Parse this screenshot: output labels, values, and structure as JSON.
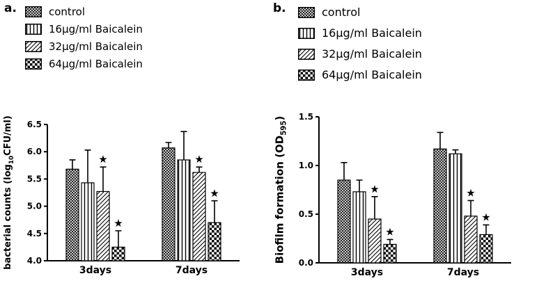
{
  "chart_data": [
    {
      "type": "bar",
      "panel_label": "a.",
      "ylabel": {
        "pre": "bacterial counts (log",
        "sub": "10",
        "post": "CFU/ml)"
      },
      "ylim": [
        4.0,
        6.5
      ],
      "yticks": [
        "4.0",
        "4.5",
        "5.0",
        "5.5",
        "6.0",
        "6.5"
      ],
      "categories": [
        "3days",
        "7days"
      ],
      "series": [
        {
          "name": "control",
          "pattern": "crosshatch-fine",
          "values": [
            5.68,
            6.07
          ],
          "errors": [
            0.17,
            0.1
          ],
          "significant": [
            false,
            false
          ]
        },
        {
          "name": "16μg/ml Baicalein",
          "pattern": "vertical-lines",
          "values": [
            5.43,
            5.85
          ],
          "errors": [
            0.6,
            0.52
          ],
          "significant": [
            false,
            false
          ]
        },
        {
          "name": "32μg/ml Baicalein",
          "pattern": "diagonal-lines",
          "values": [
            5.27,
            5.62
          ],
          "errors": [
            0.45,
            0.1
          ],
          "significant": [
            true,
            true
          ]
        },
        {
          "name": "64μg/ml Baicalein",
          "pattern": "checkerboard",
          "values": [
            4.25,
            4.7
          ],
          "errors": [
            0.3,
            0.4
          ],
          "significant": [
            true,
            true
          ]
        }
      ],
      "significance_marker": "★",
      "bar_fill": "#ffffff",
      "outline_color": "#000000",
      "legend_position": "top-left",
      "grid": false
    },
    {
      "type": "bar",
      "panel_label": "b.",
      "ylabel": {
        "pre": "Biofilm formation (OD",
        "sub": "595",
        "post": ")"
      },
      "ylim": [
        0.0,
        1.5
      ],
      "yticks": [
        "0.0",
        "0.5",
        "1.0",
        "1.5"
      ],
      "categories": [
        "3days",
        "7days"
      ],
      "series": [
        {
          "name": "control",
          "pattern": "crosshatch-fine",
          "values": [
            0.85,
            1.17
          ],
          "errors": [
            0.18,
            0.17
          ],
          "significant": [
            false,
            false
          ]
        },
        {
          "name": "16μg/ml Baicalein",
          "pattern": "vertical-lines",
          "values": [
            0.73,
            1.12
          ],
          "errors": [
            0.12,
            0.04
          ],
          "significant": [
            false,
            false
          ]
        },
        {
          "name": "32μg/ml Baicalein",
          "pattern": "diagonal-lines",
          "values": [
            0.45,
            0.48
          ],
          "errors": [
            0.23,
            0.16
          ],
          "significant": [
            true,
            true
          ]
        },
        {
          "name": "64μg/ml Baicalein",
          "pattern": "checkerboard",
          "values": [
            0.19,
            0.29
          ],
          "errors": [
            0.05,
            0.1
          ],
          "significant": [
            true,
            true
          ]
        }
      ],
      "significance_marker": "★",
      "bar_fill": "#ffffff",
      "outline_color": "#000000",
      "legend_position": "top-left",
      "grid": false
    }
  ]
}
